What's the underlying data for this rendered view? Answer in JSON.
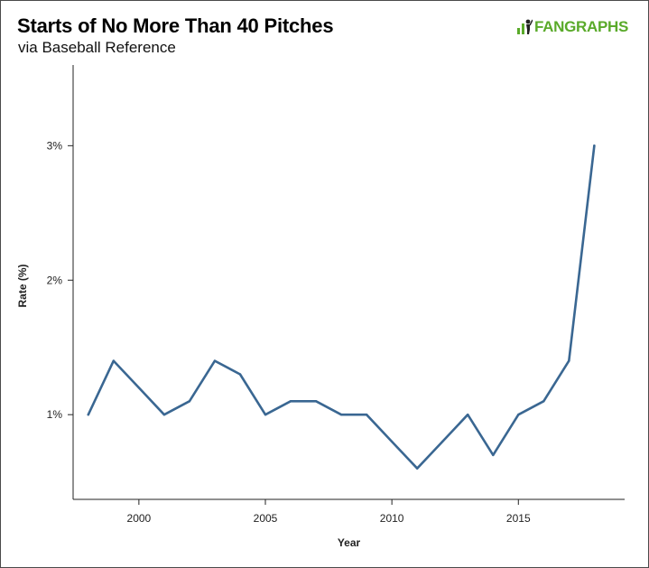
{
  "title": "Starts of No More Than 40 Pitches",
  "subtitle": "via Baseball Reference",
  "logo": {
    "text": "FANGRAPHS",
    "color": "#5aaa2a"
  },
  "chart_data": {
    "type": "line",
    "title": "Starts of No More Than 40 Pitches",
    "subtitle": "via Baseball Reference",
    "xlabel": "Year",
    "ylabel": "Rate (%)",
    "xlim": [
      1997.4,
      2019.2
    ],
    "ylim": [
      0.37,
      3.6
    ],
    "x_ticks": [
      2000,
      2005,
      2010,
      2015
    ],
    "y_ticks": [
      1,
      2,
      3
    ],
    "y_tick_labels": [
      "1%",
      "2%",
      "3%"
    ],
    "grid": false,
    "line_color": "#3a6792",
    "series": [
      {
        "x": [
          1998,
          1999,
          2000,
          2001,
          2002,
          2003,
          2004,
          2005,
          2006,
          2007,
          2008,
          2009,
          2010,
          2011,
          2012,
          2013,
          2014,
          2015,
          2016,
          2017,
          2018
        ],
        "values": [
          1.0,
          1.4,
          1.2,
          1.0,
          1.1,
          1.4,
          1.3,
          1.0,
          1.1,
          1.1,
          1.0,
          1.0,
          0.8,
          0.6,
          0.8,
          1.0,
          0.7,
          1.0,
          1.1,
          1.4,
          3.0
        ]
      }
    ]
  }
}
